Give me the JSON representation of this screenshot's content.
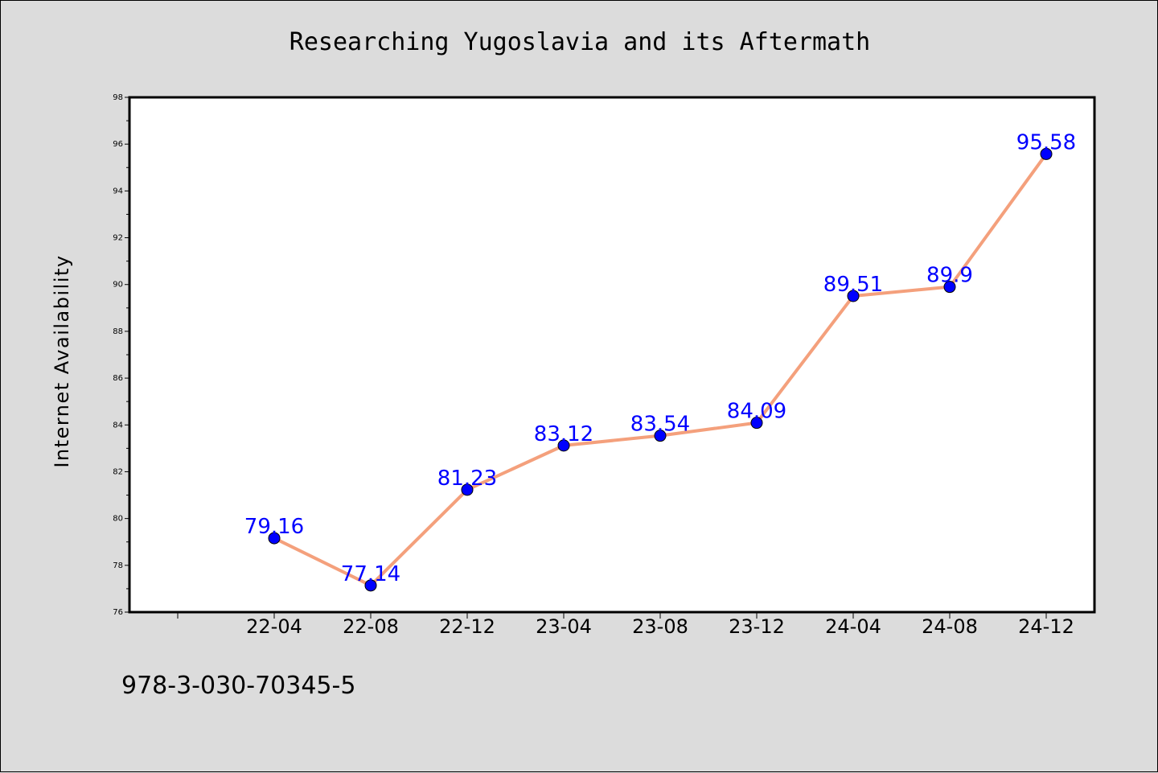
{
  "chart_data": {
    "type": "line",
    "title": "Researching Yugoslavia and its Aftermath",
    "xlabel": "",
    "ylabel": "Internet Availability",
    "x": [
      "22-04",
      "22-08",
      "22-12",
      "23-04",
      "23-08",
      "23-12",
      "24-04",
      "24-08",
      "24-12"
    ],
    "series": [
      {
        "values": [
          79.16,
          77.14,
          81.23,
          83.12,
          83.54,
          84.09,
          89.51,
          89.9,
          95.58
        ],
        "labels": [
          "79.16",
          "77.14",
          "81.23",
          "83.12",
          "83.54",
          "84.09",
          "89.51",
          "89.9",
          "95.58"
        ]
      }
    ],
    "ylim": [
      76,
      98
    ],
    "yticks": [
      "76",
      "78",
      "80",
      "82",
      "84",
      "86",
      "88",
      "90",
      "92",
      "94",
      "96",
      "98"
    ],
    "grid": false,
    "line_color": "#f4a07c",
    "marker_color": "#0000ff",
    "data_label_color": "#0000ff",
    "background_color": "#dcdcdc",
    "plot_background_color": "#ffffff"
  },
  "footnote": "978-3-030-70345-5"
}
